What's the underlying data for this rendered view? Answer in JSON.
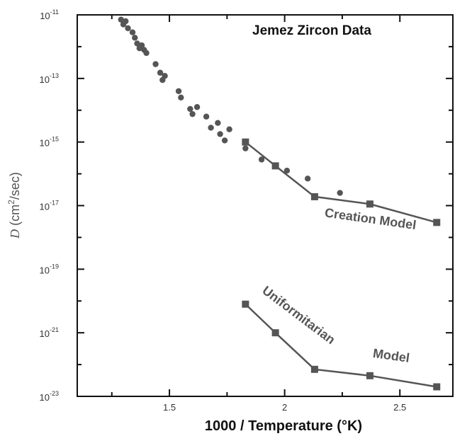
{
  "chart_data": {
    "type": "scatter",
    "title": "Jemez Zircon Data",
    "xlabel": "1000 / Temperature (°K)",
    "ylabel": {
      "symbol": "D",
      "units_pre": " (cm",
      "units_sup": "2",
      "units_post": "/sec)"
    },
    "xlim": [
      1.1,
      2.73
    ],
    "ylim_log10": [
      -23,
      -11
    ],
    "y_scale": "log",
    "grid": false,
    "x_ticks": [
      {
        "value": 1.5,
        "label": "1.5"
      },
      {
        "value": 2.0,
        "label": "2"
      },
      {
        "value": 2.5,
        "label": "2.5"
      }
    ],
    "y_ticks": [
      {
        "exp": -11,
        "base": "10",
        "sup": "-11"
      },
      {
        "exp": -13,
        "base": "10",
        "sup": "-13"
      },
      {
        "exp": -15,
        "base": "10",
        "sup": "-15"
      },
      {
        "exp": -17,
        "base": "10",
        "sup": "-17"
      },
      {
        "exp": -19,
        "base": "10",
        "sup": "-19"
      },
      {
        "exp": -21,
        "base": "10",
        "sup": "-21"
      },
      {
        "exp": -23,
        "base": "10",
        "sup": "-23"
      }
    ],
    "series": [
      {
        "role": "measured",
        "marker": "circle",
        "color": "#555555",
        "points": [
          {
            "x": 1.29,
            "log10_y": -11.15
          },
          {
            "x": 1.3,
            "log10_y": -11.3
          },
          {
            "x": 1.31,
            "log10_y": -11.2
          },
          {
            "x": 1.32,
            "log10_y": -11.42
          },
          {
            "x": 1.34,
            "log10_y": -11.55
          },
          {
            "x": 1.35,
            "log10_y": -11.72
          },
          {
            "x": 1.36,
            "log10_y": -11.9
          },
          {
            "x": 1.37,
            "log10_y": -12.05
          },
          {
            "x": 1.38,
            "log10_y": -11.96
          },
          {
            "x": 1.39,
            "log10_y": -12.1
          },
          {
            "x": 1.4,
            "log10_y": -12.2
          },
          {
            "x": 1.44,
            "log10_y": -12.55
          },
          {
            "x": 1.46,
            "log10_y": -12.82
          },
          {
            "x": 1.47,
            "log10_y": -13.05
          },
          {
            "x": 1.48,
            "log10_y": -12.92
          },
          {
            "x": 1.54,
            "log10_y": -13.4
          },
          {
            "x": 1.55,
            "log10_y": -13.6
          },
          {
            "x": 1.59,
            "log10_y": -13.96
          },
          {
            "x": 1.6,
            "log10_y": -14.12
          },
          {
            "x": 1.62,
            "log10_y": -13.9
          },
          {
            "x": 1.66,
            "log10_y": -14.2
          },
          {
            "x": 1.68,
            "log10_y": -14.55
          },
          {
            "x": 1.71,
            "log10_y": -14.4
          },
          {
            "x": 1.72,
            "log10_y": -14.75
          },
          {
            "x": 1.74,
            "log10_y": -14.95
          },
          {
            "x": 1.76,
            "log10_y": -14.6
          },
          {
            "x": 1.83,
            "log10_y": -15.2
          },
          {
            "x": 1.9,
            "log10_y": -15.55
          },
          {
            "x": 2.01,
            "log10_y": -15.9
          },
          {
            "x": 2.1,
            "log10_y": -16.15
          },
          {
            "x": 2.24,
            "log10_y": -16.6
          }
        ]
      },
      {
        "role": "model",
        "marker": "square",
        "color": "#555555",
        "points": [
          {
            "x": 1.83,
            "log10_y": -15.0
          },
          {
            "x": 1.96,
            "log10_y": -15.75
          },
          {
            "x": 2.13,
            "log10_y": -16.72
          },
          {
            "x": 2.37,
            "log10_y": -16.95
          },
          {
            "x": 2.66,
            "log10_y": -17.53
          }
        ]
      },
      {
        "role": "model",
        "marker": "square",
        "color": "#555555",
        "points": [
          {
            "x": 1.83,
            "log10_y": -20.1
          },
          {
            "x": 1.96,
            "log10_y": -21.0
          },
          {
            "x": 2.13,
            "log10_y": -22.15
          },
          {
            "x": 2.37,
            "log10_y": -22.35
          },
          {
            "x": 2.66,
            "log10_y": -22.7
          }
        ]
      }
    ],
    "annotations": [
      {
        "text": "Creation Model",
        "x": 2.37,
        "log10_y": -17.55,
        "rotate": 8
      },
      {
        "text": "Uniformitarian",
        "x": 2.05,
        "log10_y": -20.55,
        "rotate": 37
      },
      {
        "text": "Model",
        "x": 2.46,
        "log10_y": -21.85,
        "rotate": 8
      }
    ]
  }
}
